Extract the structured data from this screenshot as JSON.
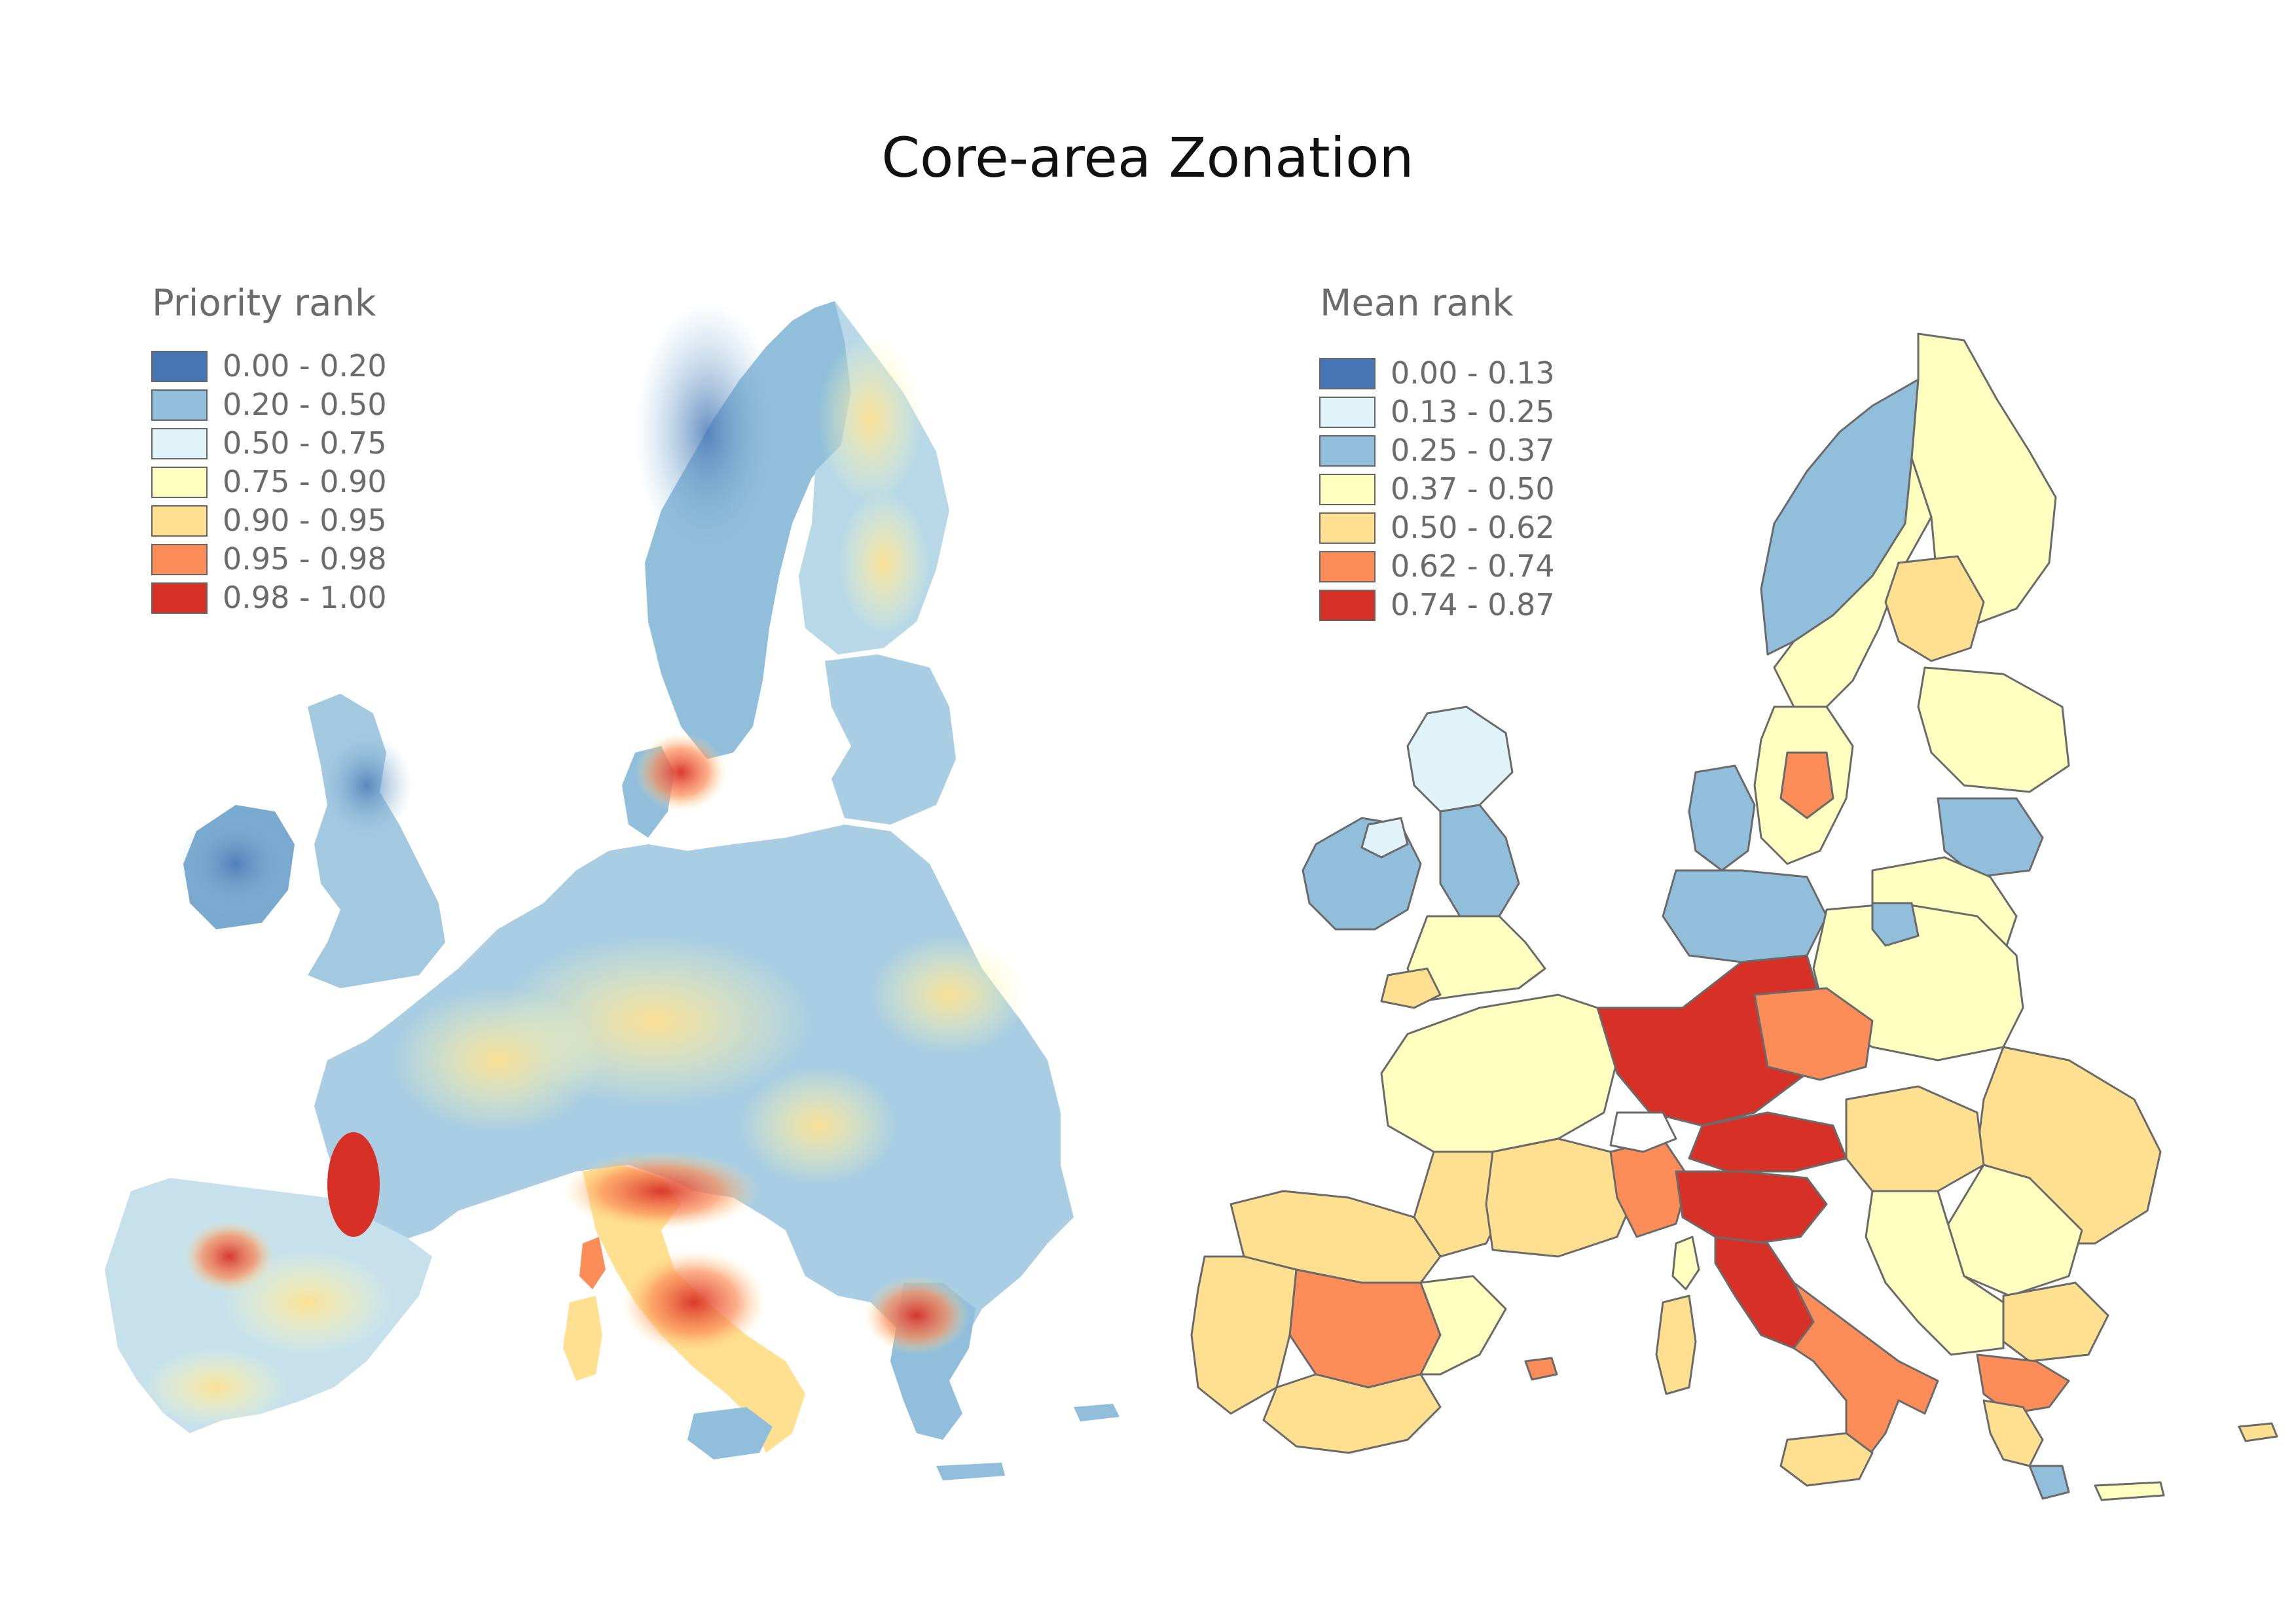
{
  "title": "Core-area Zonation",
  "maps": [
    {
      "legend_title": "Priority rank",
      "legend": [
        {
          "label": "0.00 - 0.20",
          "color": "#4575b4"
        },
        {
          "label": "0.20 - 0.50",
          "color": "#91bfdb"
        },
        {
          "label": "0.50 - 0.75",
          "color": "#e0f3f8"
        },
        {
          "label": "0.75 - 0.90",
          "color": "#ffffbf"
        },
        {
          "label": "0.90 - 0.95",
          "color": "#fee090"
        },
        {
          "label": "0.95 - 0.98",
          "color": "#fc8d59"
        },
        {
          "label": "0.98 - 1.00",
          "color": "#d73027"
        }
      ]
    },
    {
      "legend_title": "Mean rank",
      "legend": [
        {
          "label": "0.00 - 0.13",
          "color": "#4575b4"
        },
        {
          "label": "0.13 - 0.25",
          "color": "#e0f3f8"
        },
        {
          "label": "0.25 - 0.37",
          "color": "#91bfdb"
        },
        {
          "label": "0.37 - 0.50",
          "color": "#ffffbf"
        },
        {
          "label": "0.50 - 0.62",
          "color": "#fee090"
        },
        {
          "label": "0.62 - 0.74",
          "color": "#fc8d59"
        },
        {
          "label": "0.74 - 0.87",
          "color": "#d73027"
        }
      ]
    }
  ]
}
